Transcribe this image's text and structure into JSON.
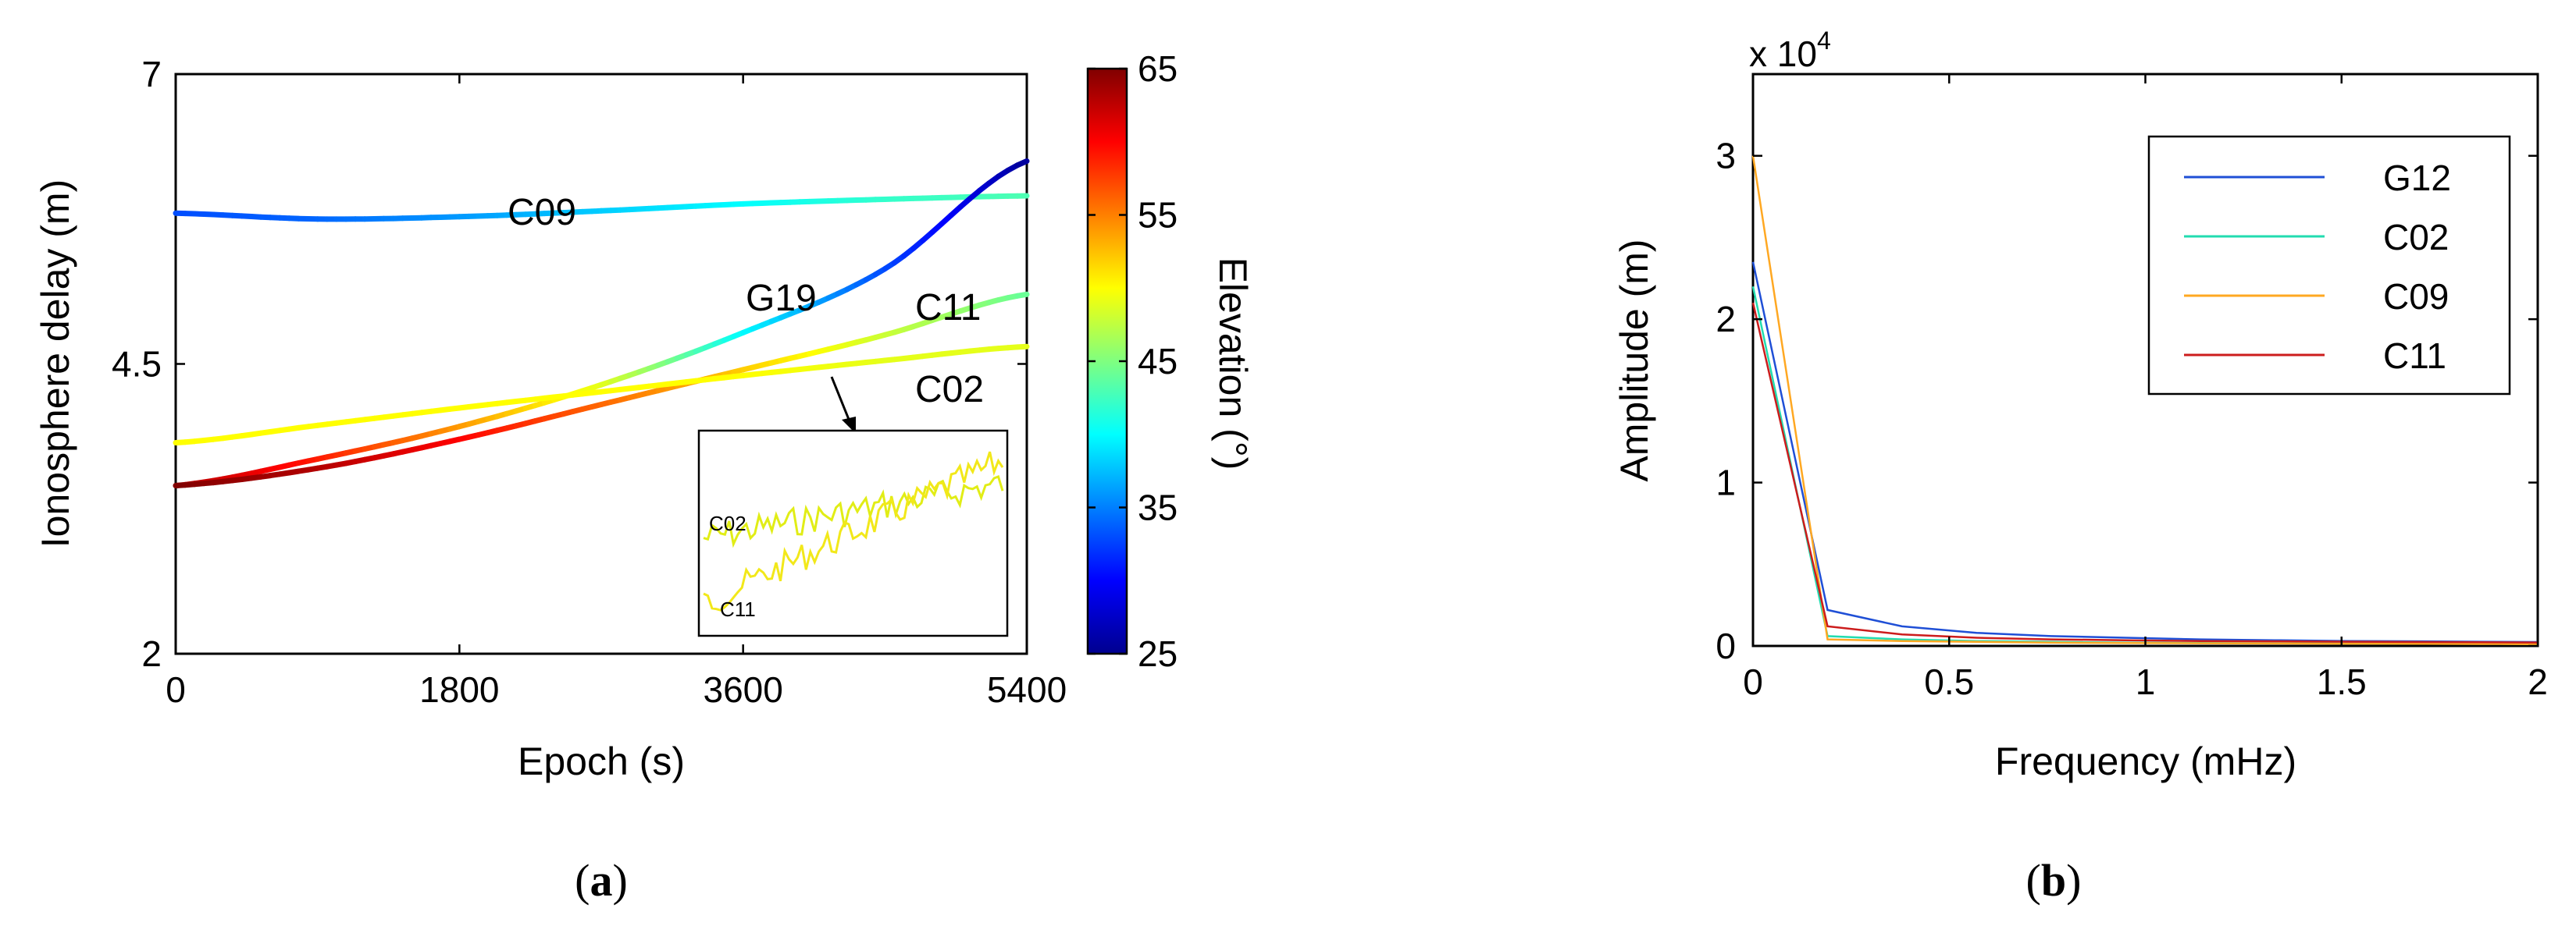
{
  "charts": [
    {
      "type": "line",
      "label": "(a)",
      "label_letter": "a",
      "xlabel": "Epoch (s)",
      "ylabel": "Ionosphere delay (m)",
      "xlim": [
        0,
        5400
      ],
      "ylim": [
        2,
        7
      ],
      "xticks": [
        0,
        1800,
        3600,
        5400
      ],
      "yticks": [
        2,
        4.5,
        7
      ],
      "colorbar": {
        "label": "Elevation (°)",
        "range": [
          25,
          65
        ],
        "ticks": [
          25,
          35,
          45,
          55,
          65
        ],
        "colormap": "jet"
      },
      "series": [
        {
          "name": "C09",
          "x": [
            0,
            900,
            1800,
            2700,
            3600,
            4500,
            5400
          ],
          "y": [
            5.8,
            5.75,
            5.77,
            5.82,
            5.88,
            5.92,
            5.95
          ],
          "elev": [
            33,
            34,
            36,
            38,
            40,
            42,
            43
          ]
        },
        {
          "name": "G19",
          "x": [
            0,
            900,
            1800,
            2700,
            3600,
            4500,
            5400
          ],
          "y": [
            3.45,
            3.68,
            3.96,
            4.32,
            4.77,
            5.32,
            6.25
          ],
          "elev": [
            63,
            59,
            54,
            49,
            40,
            33,
            26
          ]
        },
        {
          "name": "C11",
          "x": [
            0,
            900,
            1800,
            2700,
            3600,
            4500,
            5400
          ],
          "y": [
            3.45,
            3.6,
            3.85,
            4.15,
            4.45,
            4.75,
            5.1
          ],
          "elev": [
            65,
            63,
            60,
            56,
            52,
            48,
            44
          ]
        },
        {
          "name": "C02",
          "x": [
            0,
            900,
            1800,
            2700,
            3600,
            4500,
            5400
          ],
          "y": [
            3.82,
            3.97,
            4.12,
            4.26,
            4.4,
            4.53,
            4.65
          ],
          "elev": [
            50,
            50,
            50,
            50,
            50,
            49,
            49
          ]
        }
      ],
      "inset_labels": [
        "C02",
        "C11"
      ]
    },
    {
      "type": "line",
      "label": "(b)",
      "label_letter": "b",
      "xlabel": "Frequency (mHz)",
      "ylabel": "Amplitude (m)",
      "multiplier_base": "x 10",
      "multiplier_exp": "4",
      "xlim": [
        0,
        2
      ],
      "ylim": [
        0,
        3.5
      ],
      "xticks": [
        0,
        0.5,
        1,
        1.5,
        2
      ],
      "yticks": [
        0,
        1,
        2,
        3
      ],
      "legend_position": "top-right",
      "series": [
        {
          "name": "G12",
          "color": "#1f4fd6",
          "x": [
            0,
            0.19,
            0.38,
            0.57,
            0.76,
            0.95,
            1.14,
            1.33,
            1.52,
            1.71,
            1.9,
            2.0
          ],
          "y": [
            2.35,
            0.22,
            0.12,
            0.08,
            0.06,
            0.05,
            0.04,
            0.035,
            0.03,
            0.028,
            0.025,
            0.024
          ]
        },
        {
          "name": "C02",
          "color": "#22dcb0",
          "x": [
            0,
            0.19,
            0.38,
            0.57,
            0.76,
            0.95,
            1.14,
            1.33,
            1.52,
            1.71,
            1.9,
            2.0
          ],
          "y": [
            2.2,
            0.06,
            0.04,
            0.03,
            0.025,
            0.02,
            0.018,
            0.016,
            0.015,
            0.014,
            0.013,
            0.012
          ]
        },
        {
          "name": "C09",
          "color": "#ffa822",
          "x": [
            0,
            0.19,
            0.38,
            0.57,
            0.76,
            0.95,
            1.14,
            1.33,
            1.52,
            1.71,
            1.9,
            2.0
          ],
          "y": [
            3.0,
            0.04,
            0.03,
            0.025,
            0.02,
            0.018,
            0.016,
            0.015,
            0.014,
            0.013,
            0.012,
            0.011
          ]
        },
        {
          "name": "C11",
          "color": "#cc1c1c",
          "x": [
            0,
            0.19,
            0.38,
            0.57,
            0.76,
            0.95,
            1.14,
            1.33,
            1.52,
            1.71,
            1.9,
            2.0
          ],
          "y": [
            2.1,
            0.12,
            0.07,
            0.05,
            0.04,
            0.035,
            0.03,
            0.028,
            0.026,
            0.024,
            0.022,
            0.021
          ]
        }
      ]
    }
  ]
}
